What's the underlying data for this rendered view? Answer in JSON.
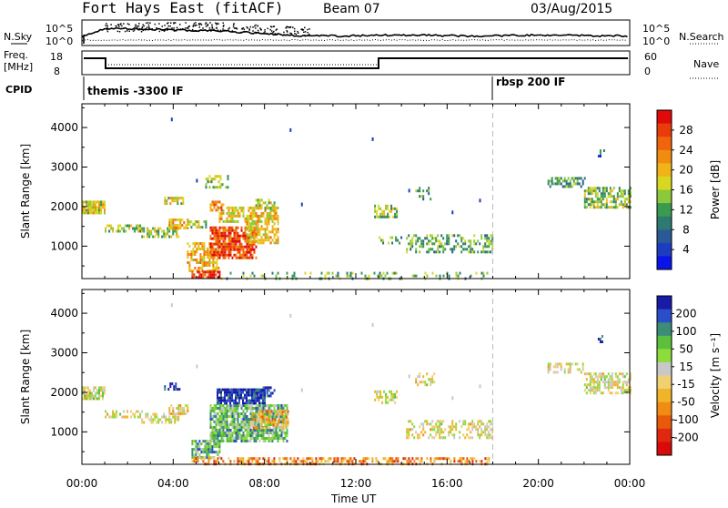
{
  "header": {
    "station": "Fort Hays East (fitACF)",
    "beam": "Beam 07",
    "date": "03/Aug/2015"
  },
  "strip_panels": {
    "nsky": {
      "label": "N.Sky",
      "tick_top": "10^5",
      "tick_bottom": "10^0"
    },
    "nsearch": {
      "label": "N.Search",
      "tick_top": "10^5",
      "tick_bottom": "10^0"
    },
    "freq": {
      "label_line1": "Freq.",
      "label_line2": "[MHz]",
      "tick_top": "18",
      "tick_bottom": "8"
    },
    "nave": {
      "label": "Nave",
      "tick_top": "60",
      "tick_bottom": "0"
    },
    "cpid": {
      "label": "CPID",
      "segments": [
        "themis -3300 IF",
        "rbsp 200 IF"
      ]
    }
  },
  "chart_data": [
    {
      "type": "heatmap",
      "name": "power",
      "ylabel": "Slant Range [km]",
      "xlabel": "Time UT",
      "x_ticks": [
        "00:00",
        "04:00",
        "08:00",
        "12:00",
        "16:00",
        "20:00",
        "00:00"
      ],
      "xlim_hours": [
        0,
        24
      ],
      "y_ticks": [
        1000,
        2000,
        3000,
        4000
      ],
      "ylim": [
        180,
        4600
      ],
      "colorbar": {
        "label": "Power [dB]",
        "ticks": [
          "4",
          "8",
          "12",
          "16",
          "20",
          "24",
          "28"
        ],
        "colors": [
          "#0a14e8",
          "#1e3cc0",
          "#2a5a96",
          "#2e7a72",
          "#3a9a50",
          "#8cc83c",
          "#d8d822",
          "#f0b418",
          "#f08c10",
          "#f0640c",
          "#e83c0a",
          "#e00a0a"
        ]
      },
      "clusters": [
        {
          "t0": 0.0,
          "t1": 1.0,
          "r0": 1850,
          "r1": 2150,
          "level": 0.55,
          "density": 0.85
        },
        {
          "t0": 1.0,
          "t1": 2.6,
          "r0": 1380,
          "r1": 1550,
          "level": 0.45,
          "density": 0.6
        },
        {
          "t0": 2.6,
          "t1": 4.2,
          "r0": 1250,
          "r1": 1480,
          "level": 0.5,
          "density": 0.7
        },
        {
          "t0": 3.8,
          "t1": 4.6,
          "r0": 1450,
          "r1": 1700,
          "level": 0.65,
          "density": 0.7
        },
        {
          "t0": 4.6,
          "t1": 5.5,
          "r0": 1500,
          "r1": 1650,
          "level": 0.5,
          "density": 0.5
        },
        {
          "t0": 3.6,
          "t1": 4.4,
          "r0": 2050,
          "r1": 2250,
          "level": 0.55,
          "density": 0.6
        },
        {
          "t0": 5.4,
          "t1": 6.4,
          "r0": 2500,
          "r1": 2800,
          "level": 0.45,
          "density": 0.35
        },
        {
          "t0": 5.6,
          "t1": 6.3,
          "r0": 1900,
          "r1": 2150,
          "level": 0.75,
          "density": 0.7
        },
        {
          "t0": 6.0,
          "t1": 8.6,
          "r0": 1600,
          "r1": 2000,
          "level": 0.6,
          "density": 0.7
        },
        {
          "t0": 7.6,
          "t1": 8.4,
          "r0": 1950,
          "r1": 2200,
          "level": 0.55,
          "density": 0.6
        },
        {
          "t0": 4.6,
          "t1": 6.0,
          "r0": 400,
          "r1": 1100,
          "level": 0.65,
          "density": 0.55
        },
        {
          "t0": 5.6,
          "t1": 7.6,
          "r0": 700,
          "r1": 1500,
          "level": 0.85,
          "density": 0.8
        },
        {
          "t0": 7.2,
          "t1": 8.6,
          "r0": 1100,
          "r1": 1600,
          "level": 0.6,
          "density": 0.65
        },
        {
          "t0": 4.8,
          "t1": 6.0,
          "r0": 180,
          "r1": 380,
          "level": 0.9,
          "density": 0.85
        },
        {
          "t0": 6.0,
          "t1": 17.8,
          "r0": 180,
          "r1": 350,
          "level": 0.4,
          "density": 0.2
        },
        {
          "t0": 12.8,
          "t1": 13.8,
          "r0": 1750,
          "r1": 2050,
          "level": 0.45,
          "density": 0.6
        },
        {
          "t0": 14.6,
          "t1": 15.4,
          "r0": 2200,
          "r1": 2500,
          "level": 0.35,
          "density": 0.3
        },
        {
          "t0": 14.2,
          "t1": 18.0,
          "r0": 850,
          "r1": 1300,
          "level": 0.4,
          "density": 0.45
        },
        {
          "t0": 13.0,
          "t1": 14.0,
          "r0": 1050,
          "r1": 1250,
          "level": 0.4,
          "density": 0.35
        },
        {
          "t0": 20.4,
          "t1": 22.0,
          "r0": 2500,
          "r1": 2750,
          "level": 0.35,
          "density": 0.5
        },
        {
          "t0": 22.0,
          "t1": 24.0,
          "r0": 1950,
          "r1": 2500,
          "level": 0.45,
          "density": 0.65
        },
        {
          "t0": 22.6,
          "t1": 22.9,
          "r0": 3300,
          "r1": 3450,
          "level": 0.2,
          "density": 0.6
        }
      ]
    },
    {
      "type": "heatmap",
      "name": "velocity",
      "ylabel": "Slant Range [km]",
      "xlabel": "Time UT",
      "x_ticks": [
        "00:00",
        "04:00",
        "08:00",
        "12:00",
        "16:00",
        "20:00",
        "00:00"
      ],
      "xlim_hours": [
        0,
        24
      ],
      "y_ticks": [
        1000,
        2000,
        3000,
        4000
      ],
      "ylim": [
        180,
        4600
      ],
      "colorbar": {
        "label": "Velocity [m s⁻¹]",
        "ticks": [
          "200",
          "100",
          "50",
          "15",
          "-15",
          "-50",
          "-100",
          "-200"
        ],
        "colors": [
          "#1a1aa8",
          "#2a4ec8",
          "#3c8c78",
          "#5cc03c",
          "#8cdc3c",
          "#c8c8c8",
          "#f0d070",
          "#f0b428",
          "#f08c14",
          "#e85a0a",
          "#e02810",
          "#d80a0a"
        ]
      },
      "clusters": [
        {
          "t0": 0.0,
          "t1": 1.0,
          "r0": 1850,
          "r1": 2150,
          "level": 0.45,
          "density": 0.85
        },
        {
          "t0": 1.0,
          "t1": 2.6,
          "r0": 1380,
          "r1": 1550,
          "level": 0.5,
          "density": 0.55
        },
        {
          "t0": 2.6,
          "t1": 4.2,
          "r0": 1250,
          "r1": 1480,
          "level": 0.5,
          "density": 0.6
        },
        {
          "t0": 3.8,
          "t1": 4.6,
          "r0": 1450,
          "r1": 1700,
          "level": 0.55,
          "density": 0.6
        },
        {
          "t0": 3.6,
          "t1": 4.3,
          "r0": 2050,
          "r1": 2250,
          "level": 0.05,
          "density": 0.6
        },
        {
          "t0": 5.9,
          "t1": 8.0,
          "r0": 1700,
          "r1": 2100,
          "level": 0.05,
          "density": 0.9
        },
        {
          "t0": 7.6,
          "t1": 8.4,
          "r0": 1900,
          "r1": 2150,
          "level": 0.1,
          "density": 0.6
        },
        {
          "t0": 5.6,
          "t1": 9.0,
          "r0": 800,
          "r1": 1700,
          "level": 0.32,
          "density": 0.85
        },
        {
          "t0": 7.4,
          "t1": 9.0,
          "r0": 1100,
          "r1": 1550,
          "level": 0.62,
          "density": 0.6
        },
        {
          "t0": 4.8,
          "t1": 6.0,
          "r0": 350,
          "r1": 800,
          "level": 0.3,
          "density": 0.75
        },
        {
          "t0": 4.8,
          "t1": 17.8,
          "r0": 180,
          "r1": 360,
          "level": 0.7,
          "density": 0.5
        },
        {
          "t0": 12.8,
          "t1": 13.8,
          "r0": 1750,
          "r1": 2050,
          "level": 0.5,
          "density": 0.5
        },
        {
          "t0": 14.6,
          "t1": 15.4,
          "r0": 2200,
          "r1": 2500,
          "level": 0.5,
          "density": 0.3
        },
        {
          "t0": 14.2,
          "t1": 18.0,
          "r0": 850,
          "r1": 1300,
          "level": 0.5,
          "density": 0.4
        },
        {
          "t0": 20.4,
          "t1": 22.0,
          "r0": 2500,
          "r1": 2750,
          "level": 0.52,
          "density": 0.45
        },
        {
          "t0": 22.0,
          "t1": 24.0,
          "r0": 1950,
          "r1": 2500,
          "level": 0.5,
          "density": 0.6
        },
        {
          "t0": 22.6,
          "t1": 22.9,
          "r0": 3300,
          "r1": 3450,
          "level": 0.08,
          "density": 0.6
        }
      ]
    }
  ]
}
